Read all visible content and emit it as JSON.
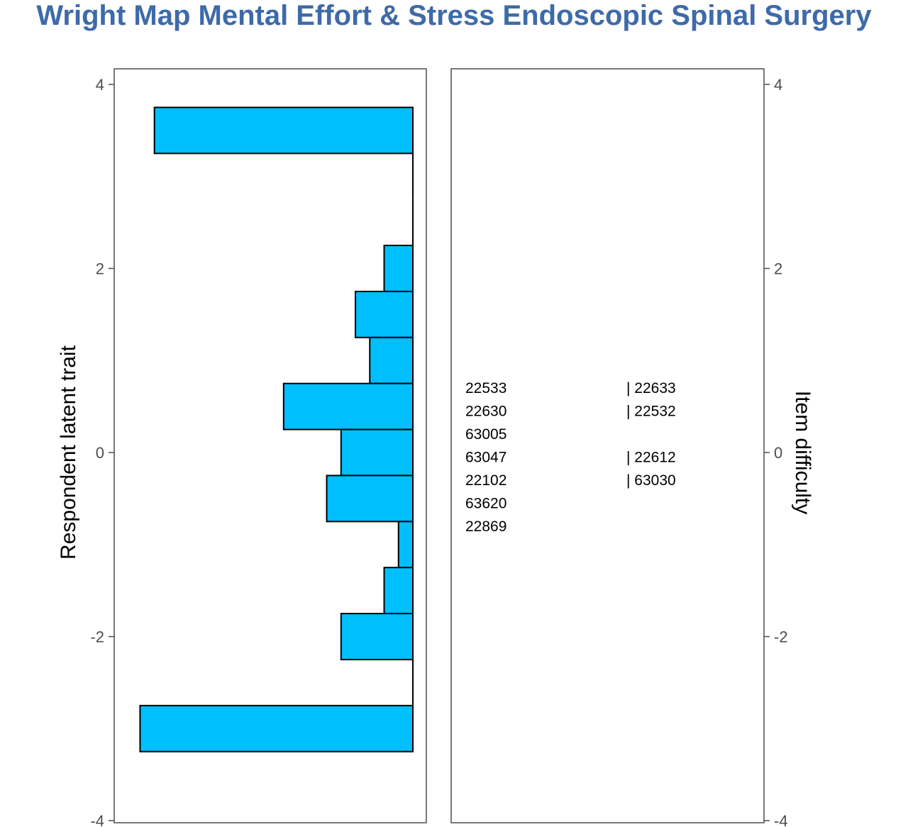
{
  "title": "Wright Map Mental Effort & Stress Endoscopic Spinal Surgery",
  "colors": {
    "title": "#3e6aa8",
    "bar_fill": "#00bfff",
    "bar_stroke": "#000000",
    "panel_border": "#4d4d4d",
    "tick_text": "#4d4d4d"
  },
  "chart_data": {
    "type": "bar",
    "orientation": "horizontal",
    "ylim": [
      -4,
      4
    ],
    "left_panel": {
      "ylabel": "Respondent latent trait",
      "yticks": [
        "-4",
        "-2",
        "0",
        "2",
        "4"
      ],
      "bins": [
        {
          "lower": 3.25,
          "upper": 3.75,
          "count": 9
        },
        {
          "lower": 2.75,
          "upper": 3.25,
          "count": 0
        },
        {
          "lower": 2.25,
          "upper": 2.75,
          "count": 0
        },
        {
          "lower": 1.75,
          "upper": 2.25,
          "count": 1
        },
        {
          "lower": 1.25,
          "upper": 1.75,
          "count": 2
        },
        {
          "lower": 0.75,
          "upper": 1.25,
          "count": 1.5
        },
        {
          "lower": 0.25,
          "upper": 0.75,
          "count": 4.5
        },
        {
          "lower": -0.25,
          "upper": 0.25,
          "count": 2.5
        },
        {
          "lower": -0.75,
          "upper": -0.25,
          "count": 3
        },
        {
          "lower": -1.25,
          "upper": -0.75,
          "count": 0.5
        },
        {
          "lower": -1.75,
          "upper": -1.25,
          "count": 1
        },
        {
          "lower": -2.25,
          "upper": -1.75,
          "count": 2.5
        },
        {
          "lower": -2.75,
          "upper": -2.25,
          "count": 0
        },
        {
          "lower": -3.25,
          "upper": -2.75,
          "count": 9.5
        }
      ],
      "count_max": 10.4
    },
    "right_panel": {
      "ylabel": "Item difficulty",
      "yticks": [
        "-4",
        "-2",
        "0",
        "2",
        "4"
      ],
      "items": [
        {
          "label": "22533",
          "y": 0.7,
          "column": 1
        },
        {
          "label": "22630",
          "y": 0.45,
          "column": 1
        },
        {
          "label": "63005",
          "y": 0.2,
          "column": 1
        },
        {
          "label": "63047",
          "y": -0.05,
          "column": 1
        },
        {
          "label": "22102",
          "y": -0.3,
          "column": 1
        },
        {
          "label": "63620",
          "y": -0.55,
          "column": 1
        },
        {
          "label": "22869",
          "y": -0.8,
          "column": 1
        },
        {
          "label": "| 22633",
          "y": 0.7,
          "column": 2
        },
        {
          "label": "| 22532",
          "y": 0.45,
          "column": 2
        },
        {
          "label": "| 22612",
          "y": -0.05,
          "column": 2
        },
        {
          "label": "| 63030",
          "y": -0.3,
          "column": 2
        }
      ]
    }
  }
}
